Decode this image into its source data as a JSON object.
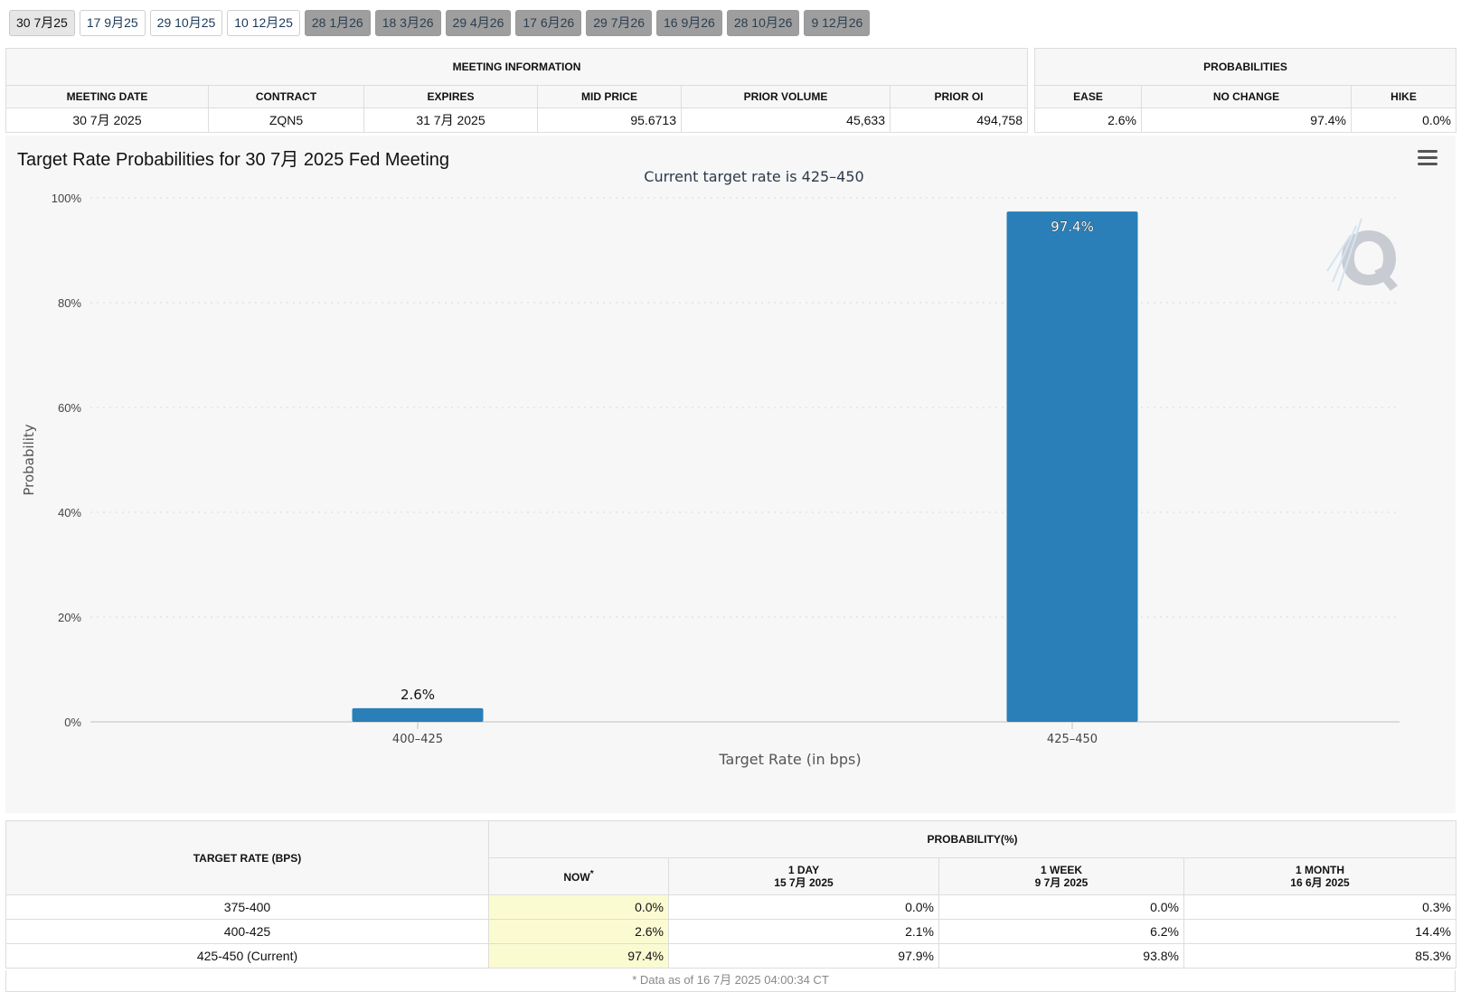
{
  "tabs": [
    {
      "label": "30 7月25",
      "state": "active"
    },
    {
      "label": "17 9月25",
      "state": "normal"
    },
    {
      "label": "29 10月25",
      "state": "normal"
    },
    {
      "label": "10 12月25",
      "state": "normal"
    },
    {
      "label": "28 1月26",
      "state": "disabled"
    },
    {
      "label": "18 3月26",
      "state": "disabled"
    },
    {
      "label": "29 4月26",
      "state": "disabled"
    },
    {
      "label": "17 6月26",
      "state": "disabled"
    },
    {
      "label": "29 7月26",
      "state": "disabled"
    },
    {
      "label": "16 9月26",
      "state": "disabled"
    },
    {
      "label": "28 10月26",
      "state": "disabled"
    },
    {
      "label": "9 12月26",
      "state": "disabled"
    }
  ],
  "meeting_info": {
    "title": "MEETING INFORMATION",
    "headers": [
      "MEETING DATE",
      "CONTRACT",
      "EXPIRES",
      "MID PRICE",
      "PRIOR VOLUME",
      "PRIOR OI"
    ],
    "row": [
      "30 7月 2025",
      "ZQN5",
      "31 7月 2025",
      "95.6713",
      "45,633",
      "494,758"
    ]
  },
  "probabilities": {
    "title": "PROBABILITIES",
    "headers": [
      "EASE",
      "NO CHANGE",
      "HIKE"
    ],
    "row": [
      "2.6%",
      "97.4%",
      "0.0%"
    ]
  },
  "chart_data": {
    "type": "bar",
    "title": "Target Rate Probabilities for 30 7月 2025 Fed Meeting",
    "subtitle": "Current target rate is 425–450",
    "xlabel": "Target Rate (in bps)",
    "ylabel": "Probability",
    "categories": [
      "400–425",
      "425–450"
    ],
    "values": [
      2.6,
      97.4
    ],
    "data_labels": [
      "2.6%",
      "97.4%"
    ],
    "ylim": [
      0,
      100
    ],
    "yticks": [
      0,
      20,
      40,
      60,
      80,
      100
    ],
    "ytick_labels": [
      "0%",
      "20%",
      "40%",
      "60%",
      "80%",
      "100%"
    ],
    "grid": true,
    "bar_color": "#2a7fb8"
  },
  "target_table": {
    "header_rate": "TARGET RATE (BPS)",
    "header_prob": "PROBABILITY(%)",
    "col_now": "NOW",
    "col_now_mark": "*",
    "col_1day": [
      "1 DAY",
      "15 7月 2025"
    ],
    "col_1week": [
      "1 WEEK",
      "9 7月 2025"
    ],
    "col_1month": [
      "1 MONTH",
      "16 6月 2025"
    ],
    "rows": [
      {
        "rate": "375-400",
        "now": "0.0%",
        "day": "0.0%",
        "week": "0.0%",
        "month": "0.3%"
      },
      {
        "rate": "400-425",
        "now": "2.6%",
        "day": "2.1%",
        "week": "6.2%",
        "month": "14.4%"
      },
      {
        "rate": "425-450 (Current)",
        "now": "97.4%",
        "day": "97.9%",
        "week": "93.8%",
        "month": "85.3%"
      }
    ],
    "footnote": "* Data as of 16 7月 2025 04:00:34 CT"
  }
}
